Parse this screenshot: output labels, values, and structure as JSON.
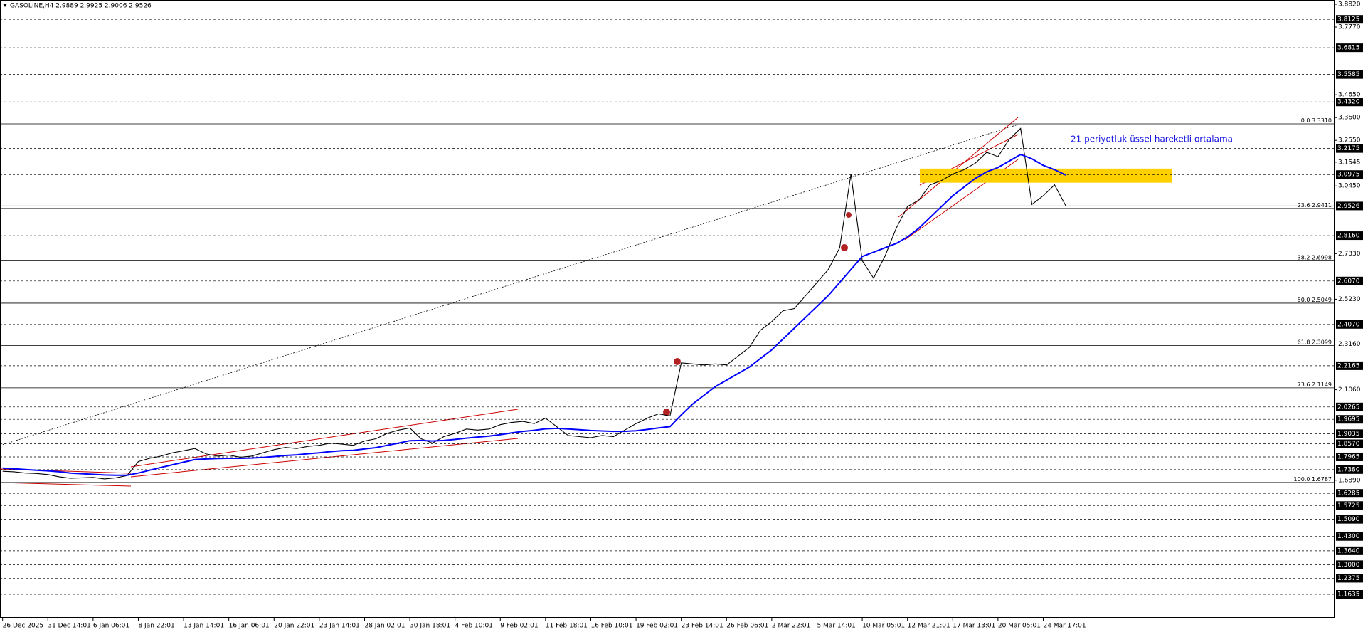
{
  "chart_data": {
    "type": "line",
    "title": "GASOLINE,H4  2.9889 2.9925 2.9006 2.9526",
    "annotation": "21 periyotluk üssel hareketli ortalama",
    "categories": [
      "26 Dec 2025",
      null,
      null,
      null,
      "31 Dec 14:01",
      null,
      null,
      null,
      "6 Jan 06:01",
      null,
      null,
      null,
      "8 Jan 22:01",
      null,
      null,
      null,
      "13 Jan 14:01",
      null,
      null,
      null,
      "16 Jan 06:01",
      null,
      null,
      null,
      "20 Jan 22:01",
      null,
      null,
      null,
      "23 Jan 14:01",
      null,
      null,
      null,
      "28 Jan 02:01",
      null,
      null,
      null,
      "30 Jan 18:01",
      null,
      null,
      null,
      "4 Feb 10:01",
      null,
      null,
      null,
      "9 Feb 02:01",
      null,
      null,
      null,
      "11 Feb 18:01",
      null,
      null,
      null,
      "16 Feb 10:01",
      null,
      null,
      null,
      "19 Feb 02:01",
      null,
      null,
      null,
      "23 Feb 14:01",
      null,
      null,
      null,
      "26 Feb 06:01",
      null,
      null,
      null,
      "2 Mar 22:01",
      null,
      null,
      null,
      "5 Mar 14:01",
      null,
      null,
      null,
      "10 Mar 05:01",
      null,
      null,
      null,
      "12 Mar 21:01",
      null,
      null,
      null,
      "17 Mar 13:01",
      null,
      null,
      null,
      "20 Mar 05:01",
      null,
      null,
      null,
      "24 Mar 17:01",
      null,
      null
    ],
    "series": [
      {
        "color": "#000000",
        "values": [
          1.73,
          1.728,
          1.722,
          1.72,
          1.715,
          1.705,
          1.698,
          1.7,
          1.702,
          1.695,
          1.7,
          1.71,
          1.775,
          1.79,
          1.8,
          1.815,
          1.825,
          1.835,
          1.81,
          1.8,
          1.805,
          1.795,
          1.8,
          1.815,
          1.83,
          1.84,
          1.835,
          1.845,
          1.85,
          1.86,
          1.855,
          1.85,
          1.87,
          1.88,
          1.905,
          1.92,
          1.93,
          1.88,
          1.86,
          1.89,
          1.905,
          1.925,
          1.92,
          1.925,
          1.945,
          1.955,
          1.96,
          1.95,
          1.975,
          1.935,
          1.895,
          1.89,
          1.885,
          1.895,
          1.89,
          1.92,
          1.95,
          1.975,
          1.995,
          1.985,
          2.23,
          2.225,
          2.22,
          2.225,
          2.22,
          2.26,
          2.3,
          2.38,
          2.42,
          2.47,
          2.48,
          2.54,
          2.6,
          2.66,
          2.76,
          3.1,
          2.7,
          2.62,
          2.72,
          2.85,
          2.95,
          2.98,
          3.05,
          3.07,
          3.1,
          3.12,
          3.15,
          3.2,
          3.18,
          3.26,
          3.31,
          2.96,
          3.0,
          3.05,
          2.9526
        ]
      },
      {
        "color": "#0000ff",
        "values": [
          1.745,
          1.742,
          1.738,
          1.735,
          1.732,
          1.728,
          1.722,
          1.719,
          1.716,
          1.713,
          1.712,
          1.712,
          1.722,
          1.735,
          1.748,
          1.76,
          1.772,
          1.784,
          1.787,
          1.789,
          1.79,
          1.79,
          1.791,
          1.794,
          1.798,
          1.803,
          1.806,
          1.811,
          1.815,
          1.821,
          1.825,
          1.827,
          1.833,
          1.839,
          1.85,
          1.86,
          1.871,
          1.872,
          1.87,
          1.872,
          1.877,
          1.883,
          1.888,
          1.892,
          1.899,
          1.907,
          1.914,
          1.919,
          1.926,
          1.928,
          1.925,
          1.922,
          1.918,
          1.916,
          1.914,
          1.914,
          1.917,
          1.923,
          1.93,
          1.936,
          1.99,
          2.04,
          2.08,
          2.12,
          2.15,
          2.18,
          2.21,
          2.25,
          2.29,
          2.34,
          2.39,
          2.44,
          2.49,
          2.54,
          2.6,
          2.66,
          2.72,
          2.74,
          2.76,
          2.78,
          2.81,
          2.85,
          2.9,
          2.95,
          3.0,
          3.04,
          3.08,
          3.11,
          3.13,
          3.16,
          3.19,
          3.17,
          3.14,
          3.12,
          3.095
        ]
      }
    ],
    "ylim": [
      1.1635,
      3.882
    ],
    "yticks": [
      {
        "value": 3.882,
        "label": "3.8820"
      },
      {
        "value": 3.777,
        "label": "3.7770"
      },
      {
        "value": 3.465,
        "label": "3.4650"
      },
      {
        "value": 3.36,
        "label": "3.3600"
      },
      {
        "value": 3.255,
        "label": "3.2550"
      },
      {
        "value": 3.1545,
        "label": "3.1545"
      },
      {
        "value": 3.045,
        "label": "3.0450"
      },
      {
        "value": 2.733,
        "label": "2.7330"
      },
      {
        "value": 2.523,
        "label": "2.5230"
      },
      {
        "value": 2.316,
        "label": "2.3160"
      },
      {
        "value": 2.106,
        "label": "2.1060"
      },
      {
        "value": 1.689,
        "label": "1.6890"
      }
    ],
    "hlines": [
      {
        "value": 3.8125,
        "label": "3.8125"
      },
      {
        "value": 3.6815,
        "label": "3.6815"
      },
      {
        "value": 3.5585,
        "label": "3.5585"
      },
      {
        "value": 3.432,
        "label": "3.4320"
      },
      {
        "value": 3.2175,
        "label": "3.2175"
      },
      {
        "value": 3.0975,
        "label": "3.0975"
      },
      {
        "value": 2.816,
        "label": "2.8160"
      },
      {
        "value": 2.607,
        "label": "2.6070"
      },
      {
        "value": 2.407,
        "label": "2.4070"
      },
      {
        "value": 2.2165,
        "label": "2.2165"
      },
      {
        "value": 2.0265,
        "label": "2.0265"
      },
      {
        "value": 1.9695,
        "label": "1.9695"
      },
      {
        "value": 1.9035,
        "label": "1.9035"
      },
      {
        "value": 1.857,
        "label": "1.8570"
      },
      {
        "value": 1.7965,
        "label": "1.7965"
      },
      {
        "value": 1.738,
        "label": "1.7380"
      },
      {
        "value": 1.6285,
        "label": "1.6285"
      },
      {
        "value": 1.5725,
        "label": "1.5725"
      },
      {
        "value": 1.509,
        "label": "1.5090"
      },
      {
        "value": 1.43,
        "label": "1.4300"
      },
      {
        "value": 1.364,
        "label": "1.3640"
      },
      {
        "value": 1.3,
        "label": "1.3000"
      },
      {
        "value": 1.2375,
        "label": "1.2375"
      },
      {
        "value": 1.1635,
        "label": "1.1635"
      }
    ],
    "fib": [
      {
        "level": "0.0",
        "value": 3.331,
        "label": "3.3310"
      },
      {
        "level": "23.6",
        "value": 2.9411,
        "label": "2.9411"
      },
      {
        "level": "38.2",
        "value": 2.6998,
        "label": "2.6998"
      },
      {
        "level": "50.0",
        "value": 2.5049,
        "label": "2.5049"
      },
      {
        "level": "61.8",
        "value": 2.3099,
        "label": "2.3099"
      },
      {
        "level": "73.6",
        "value": 2.1149,
        "label": "2.1149"
      },
      {
        "level": "100.0",
        "value": 1.6787,
        "label": "1.6787"
      }
    ],
    "current": {
      "value": 2.9526,
      "label": "2.9526"
    },
    "zone": [
      3.06,
      3.125
    ],
    "zone_color": "#ffd000"
  }
}
